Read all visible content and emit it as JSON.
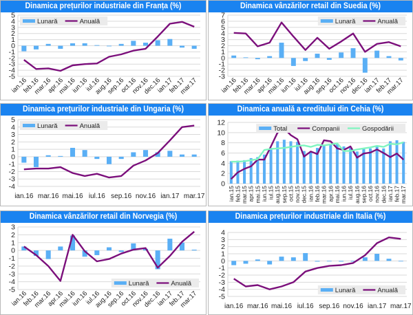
{
  "chart_data": [
    {
      "id": "franta",
      "type": "bar",
      "title": "Dinamica prețurilor industriale din Franța (%)",
      "categories": [
        "ian.16",
        "feb.16",
        "mar.16",
        "apr.16",
        "mai.16",
        "iun.16",
        "iul.16",
        "aug.16",
        "sep.16",
        "oct.16",
        "nov.16",
        "dec.16",
        "ian.17",
        "feb.17",
        "mar.17"
      ],
      "tick_labels": [
        "ian.16",
        "feb.16",
        "mar.16",
        "apr.16",
        "mai.16",
        "iun.16",
        "iul.16",
        "aug.16",
        "sep.16",
        "oct.16",
        "nov.16",
        "dec.16",
        "ian.17",
        "feb.17",
        "mar.17"
      ],
      "label_rotation": "diagonal",
      "series": [
        {
          "name": "Lunară",
          "type": "bar",
          "color": "#5aaff5",
          "values": [
            -0.9,
            -0.6,
            0.3,
            -0.5,
            0.4,
            0.4,
            0.1,
            -0.1,
            0.3,
            0.8,
            0.5,
            0.9,
            1.1,
            -0.3,
            -0.5
          ]
        },
        {
          "name": "Anuală",
          "type": "line",
          "color": "#7b0f7b",
          "values": [
            -2.3,
            -3.8,
            -3.7,
            -4.1,
            -3.2,
            -3.0,
            -2.9,
            -1.8,
            -1.4,
            -0.8,
            -0.5,
            1.5,
            3.6,
            3.9,
            3.1
          ]
        }
      ],
      "ylim": [
        -5,
        5
      ],
      "yticks": [
        -5,
        -4,
        -3,
        -2,
        -1,
        0,
        1,
        2,
        3,
        4,
        5
      ],
      "legend": "top-left",
      "grid": true
    },
    {
      "id": "suedia",
      "type": "bar",
      "title": "Dinamica vânzărilor retail din Suedia (%)",
      "categories": [
        "ian.16",
        "feb.16",
        "mar.16",
        "apr.16",
        "mai.16",
        "iun.16",
        "iul.16",
        "aug.16",
        "sep.16",
        "oct.16",
        "nov.16",
        "dec.16",
        "ian.17",
        "feb.17",
        "mar.17"
      ],
      "tick_labels": [
        "ian.16",
        "feb.16",
        "mar.16",
        "apr.16",
        "mai.16",
        "iun.16",
        "iul.16",
        "aug.16",
        "sep.16",
        "oct.16",
        "nov.16",
        "dec.16",
        "ian.17",
        "feb.17",
        "mar.17"
      ],
      "label_rotation": "diagonal",
      "series": [
        {
          "name": "Lunară",
          "type": "bar",
          "color": "#5aaff5",
          "values": [
            0.4,
            0.1,
            -0.2,
            0.3,
            2.5,
            -1.3,
            -0.5,
            0.7,
            -0.3,
            0.9,
            1.6,
            -2.4,
            1.2,
            0.3,
            -0.4
          ]
        },
        {
          "name": "Anuală",
          "type": "line",
          "color": "#7b0f7b",
          "values": [
            4.1,
            4.0,
            1.9,
            2.5,
            5.8,
            3.5,
            1.3,
            3.3,
            1.5,
            2.7,
            4.0,
            1.0,
            2.3,
            2.6,
            1.9
          ]
        }
      ],
      "ylim": [
        -3,
        7
      ],
      "yticks": [
        -3,
        -2,
        -1,
        0,
        1,
        2,
        3,
        4,
        5,
        6,
        7
      ],
      "legend": "top-right",
      "grid": true
    },
    {
      "id": "ungaria",
      "type": "bar",
      "title": "Dinamica prețurilor industriale din Ungaria (%)",
      "categories": [
        "ian.16",
        "feb.16",
        "mar.16",
        "apr.16",
        "mai.16",
        "iun.16",
        "iul.16",
        "aug.16",
        "sep.16",
        "oct.16",
        "nov.16",
        "dec.16",
        "ian.17",
        "feb.17",
        "mar.17"
      ],
      "tick_labels": [
        "ian.16",
        "",
        "mar.16",
        "",
        "mai.16",
        "",
        "iul.16",
        "",
        "sep.16",
        "",
        "nov.16",
        "",
        "ian.17",
        "",
        "mar.17"
      ],
      "label_rotation": "horizontal",
      "series": [
        {
          "name": "Lunară",
          "type": "bar",
          "color": "#5aaff5",
          "values": [
            -0.8,
            -1.4,
            0.2,
            0.1,
            1.2,
            0.9,
            -0.3,
            -1.0,
            -0.3,
            0.6,
            0.9,
            0.6,
            0.8,
            0.3,
            0.3
          ]
        },
        {
          "name": "Anuală",
          "type": "line",
          "color": "#7b0f7b",
          "values": [
            -1.7,
            -1.6,
            -1.6,
            -1.4,
            -2.2,
            -2.6,
            -2.3,
            -2.8,
            -2.6,
            -1.2,
            -0.5,
            0.5,
            2.2,
            4.0,
            4.2
          ]
        }
      ],
      "ylim": [
        -4,
        5
      ],
      "yticks": [
        -4,
        -3,
        -2,
        -1,
        0,
        1,
        2,
        3,
        4,
        5
      ],
      "legend": "top-left",
      "grid": true
    },
    {
      "id": "cehia",
      "type": "bar",
      "title": "Dinamica anuală a creditului din Cehia (%)",
      "categories": [
        "ian.15",
        "feb.15",
        "mar.15",
        "apr.15",
        "mai.15",
        "iun.15",
        "iul.15",
        "aug.15",
        "sep.15",
        "oct.15",
        "nov.15",
        "dec.15",
        "ian.16",
        "feb.16",
        "mar.16",
        "apr.16",
        "mai.16",
        "iun.16",
        "iul.16",
        "aug.16",
        "sep.16",
        "oct.16",
        "nov.16",
        "dec.16",
        "ian.17",
        "feb.17",
        "mar.17"
      ],
      "tick_labels": [
        "ian.15",
        "feb.15",
        "mar.15",
        "apr.15",
        "mai.15",
        "iun.15",
        "iul.15",
        "aug.15",
        "sep.15",
        "oct.15",
        "nov.15",
        "dec.15",
        "ian.16",
        "feb.16",
        "mar.16",
        "apr.16",
        "mai.16",
        "iun.16",
        "iul.16",
        "aug.16",
        "sep.16",
        "oct.16",
        "nov.16",
        "dec.16",
        "ian.17",
        "feb.17",
        "mar.17"
      ],
      "label_rotation": "vertical",
      "series": [
        {
          "name": "Total",
          "type": "bar",
          "color": "#5aaff5",
          "values": [
            4.4,
            4.5,
            4.6,
            5.0,
            5.2,
            5.7,
            7.0,
            8.3,
            8.6,
            8.3,
            8.2,
            6.4,
            6.3,
            7.0,
            7.5,
            7.8,
            7.7,
            7.3,
            7.0,
            6.3,
            6.8,
            6.9,
            7.4,
            6.9,
            8.3,
            8.5,
            8.2
          ]
        },
        {
          "name": "Companii",
          "type": "line",
          "color": "#7b0f7b",
          "values": [
            0.9,
            2.2,
            2.9,
            3.4,
            4.7,
            4.7,
            7.3,
            10.0,
            10.8,
            9.5,
            8.7,
            5.3,
            6.3,
            5.8,
            8.5,
            8.3,
            6.9,
            6.6,
            7.3,
            5.1,
            5.9,
            6.1,
            6.7,
            6.0,
            5.2,
            5.9,
            4.7
          ]
        },
        {
          "name": "Gospodării",
          "type": "line",
          "color": "#7ff5c0",
          "values": [
            4.3,
            4.3,
            4.4,
            4.6,
            4.8,
            6.6,
            6.8,
            6.9,
            7.0,
            7.2,
            7.4,
            7.5,
            7.2,
            7.6,
            7.5,
            7.7,
            7.9,
            6.4,
            6.4,
            6.7,
            6.9,
            7.1,
            7.4,
            7.2,
            7.8,
            7.7,
            8.1
          ]
        }
      ],
      "ylim": [
        0,
        12
      ],
      "yticks": [
        0,
        2,
        4,
        6,
        8,
        10,
        12
      ],
      "legend": "top-right",
      "grid": true
    },
    {
      "id": "norvegia",
      "type": "bar",
      "title": "Dinamica vânzărilor retail din Norvegia (%)",
      "categories": [
        "ian.16",
        "feb.16",
        "mar.16",
        "apr.16",
        "mai.16",
        "iun.16",
        "iul.16",
        "aug.16",
        "sep.16",
        "oct.16",
        "nov.16",
        "dec.16",
        "ian.17",
        "feb.17",
        "mar.17"
      ],
      "tick_labels": [
        "ian.16",
        "feb.16",
        "mar.16",
        "apr.16",
        "mai.16",
        "iun.16",
        "iul.16",
        "aug.16",
        "sep.16",
        "oct.16",
        "nov.16",
        "dec.16",
        "ian.17",
        "feb.17",
        "mar.17"
      ],
      "label_rotation": "diagonal",
      "series": [
        {
          "name": "Lunară",
          "type": "bar",
          "color": "#5aaff5",
          "values": [
            0.5,
            -0.7,
            -1.1,
            0.5,
            1.9,
            -0.8,
            -0.6,
            0.4,
            -0.2,
            0.9,
            0.2,
            -2.4,
            1.5,
            1.0,
            0.1
          ]
        },
        {
          "name": "Anuală",
          "type": "line",
          "color": "#7b0f7b",
          "values": [
            0.5,
            -0.6,
            -2.0,
            -3.9,
            2.0,
            -0.1,
            -1.4,
            -1.1,
            -0.4,
            0.1,
            0.3,
            -2.2,
            -0.7,
            1.1,
            2.4
          ]
        }
      ],
      "ylim": [
        -5,
        3
      ],
      "yticks": [
        -5,
        -4,
        -3,
        -2,
        -1,
        0,
        1,
        2,
        3
      ],
      "legend": "bottom-right",
      "grid": true
    },
    {
      "id": "italia",
      "type": "bar",
      "title": "Dinamica prețurilor industriale din Italia (%)",
      "categories": [
        "ian.16",
        "feb.16",
        "mar.16",
        "apr.16",
        "mai.16",
        "iun.16",
        "iul.16",
        "aug.16",
        "sep.16",
        "oct.16",
        "nov.16",
        "dec.16",
        "ian.17",
        "feb.17",
        "mar.17"
      ],
      "tick_labels": [
        "ian.16",
        "",
        "mar.16",
        "",
        "mai.16",
        "",
        "iul.16",
        "",
        "sep.16",
        "",
        "nov.16",
        "",
        "ian.17",
        "",
        "mar.17"
      ],
      "label_rotation": "horizontal",
      "series": [
        {
          "name": "Lunară",
          "type": "bar",
          "color": "#5aaff5",
          "values": [
            -0.6,
            -0.4,
            0.2,
            -0.5,
            0.6,
            0.5,
            1.1,
            -0.1,
            0.0,
            -0.1,
            -0.1,
            0.5,
            1.0,
            0.3,
            0.0
          ]
        },
        {
          "name": "Anuală",
          "type": "line",
          "color": "#7b0f7b",
          "values": [
            -2.5,
            -3.6,
            -3.4,
            -4.0,
            -3.6,
            -3.0,
            -1.5,
            -1.0,
            -0.7,
            -0.6,
            -0.3,
            0.8,
            2.5,
            3.3,
            3.1
          ]
        }
      ],
      "ylim": [
        -5,
        4
      ],
      "yticks": [
        -5,
        -4,
        -3,
        -2,
        -1,
        0,
        1,
        2,
        3,
        4
      ],
      "legend": "bottom-right",
      "grid": true
    }
  ]
}
